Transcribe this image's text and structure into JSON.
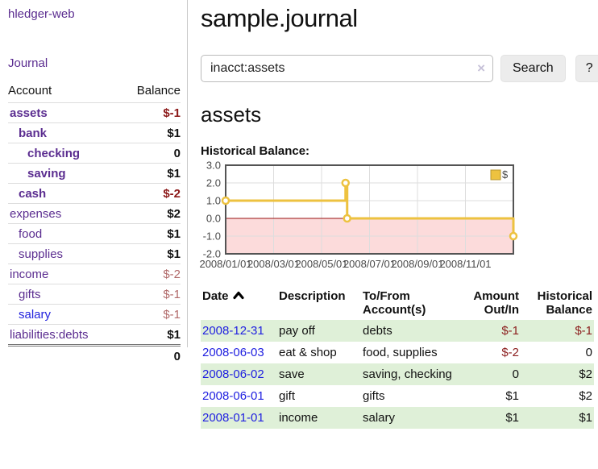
{
  "sidebar": {
    "app_title": "hledger-web",
    "journal_link": "Journal",
    "accounts_table": {
      "header_account": "Account",
      "header_balance": "Balance",
      "rows": [
        {
          "name": "assets",
          "balance": "$-1"
        },
        {
          "name": "bank",
          "balance": "$1"
        },
        {
          "name": "checking",
          "balance": "0"
        },
        {
          "name": "saving",
          "balance": "$1"
        },
        {
          "name": "cash",
          "balance": "$-2"
        },
        {
          "name": "expenses",
          "balance": "$2"
        },
        {
          "name": "food",
          "balance": "$1"
        },
        {
          "name": "supplies",
          "balance": "$1"
        },
        {
          "name": "income",
          "balance": "$-2"
        },
        {
          "name": "gifts",
          "balance": "$-1"
        },
        {
          "name": "salary",
          "balance": "$-1"
        },
        {
          "name": "liabilities:debts",
          "balance": "$1"
        }
      ],
      "total": "0"
    }
  },
  "main": {
    "title": "sample.journal",
    "search": {
      "value": "inacct:assets",
      "clear_icon": "×",
      "button_label": "Search",
      "help_label": "?"
    },
    "account_heading": "assets",
    "chart_label": "Historical Balance:"
  },
  "chart_data": {
    "type": "line",
    "title": "Historical Balance:",
    "series": [
      {
        "name": "$",
        "color": "#EDC240",
        "step": true,
        "points": [
          [
            "2008-01-01",
            1
          ],
          [
            "2008-06-01",
            2
          ],
          [
            "2008-06-03",
            0
          ],
          [
            "2008-12-31",
            -1
          ]
        ]
      }
    ],
    "xticks": [
      "2008/01/01",
      "2008/03/01",
      "2008/05/01",
      "2008/07/01",
      "2008/09/01",
      "2008/11/01"
    ],
    "yticks": [
      3.0,
      2.0,
      1.0,
      0.0,
      -1.0,
      -2.0
    ],
    "ylim": [
      -2,
      3
    ],
    "xlim_months": [
      0,
      12
    ],
    "grid": true,
    "legend_position": "top-right",
    "negative_region_color": "#fcdbdb",
    "zero_line_color": "#991111",
    "grid_color": "#dddddd",
    "border_color": "#545454",
    "tick_label_color": "#4a4a4a"
  },
  "register": {
    "headers": {
      "date": "Date",
      "description": "Description",
      "accounts": "To/From Account(s)",
      "amount": "Amount Out/In",
      "balance": "Historical Balance"
    },
    "rows": [
      {
        "date": "2008-12-31",
        "description": "pay off",
        "accounts": "debts",
        "amount": "$-1",
        "balance": "$-1"
      },
      {
        "date": "2008-06-03",
        "description": "eat & shop",
        "accounts": "food, supplies",
        "amount": "$-2",
        "balance": "0"
      },
      {
        "date": "2008-06-02",
        "description": "save",
        "accounts": "saving, checking",
        "amount": "0",
        "balance": "$2"
      },
      {
        "date": "2008-06-01",
        "description": "gift",
        "accounts": "gifts",
        "amount": "$1",
        "balance": "$2"
      },
      {
        "date": "2008-01-01",
        "description": "income",
        "accounts": "salary",
        "amount": "$1",
        "balance": "$1"
      }
    ]
  }
}
